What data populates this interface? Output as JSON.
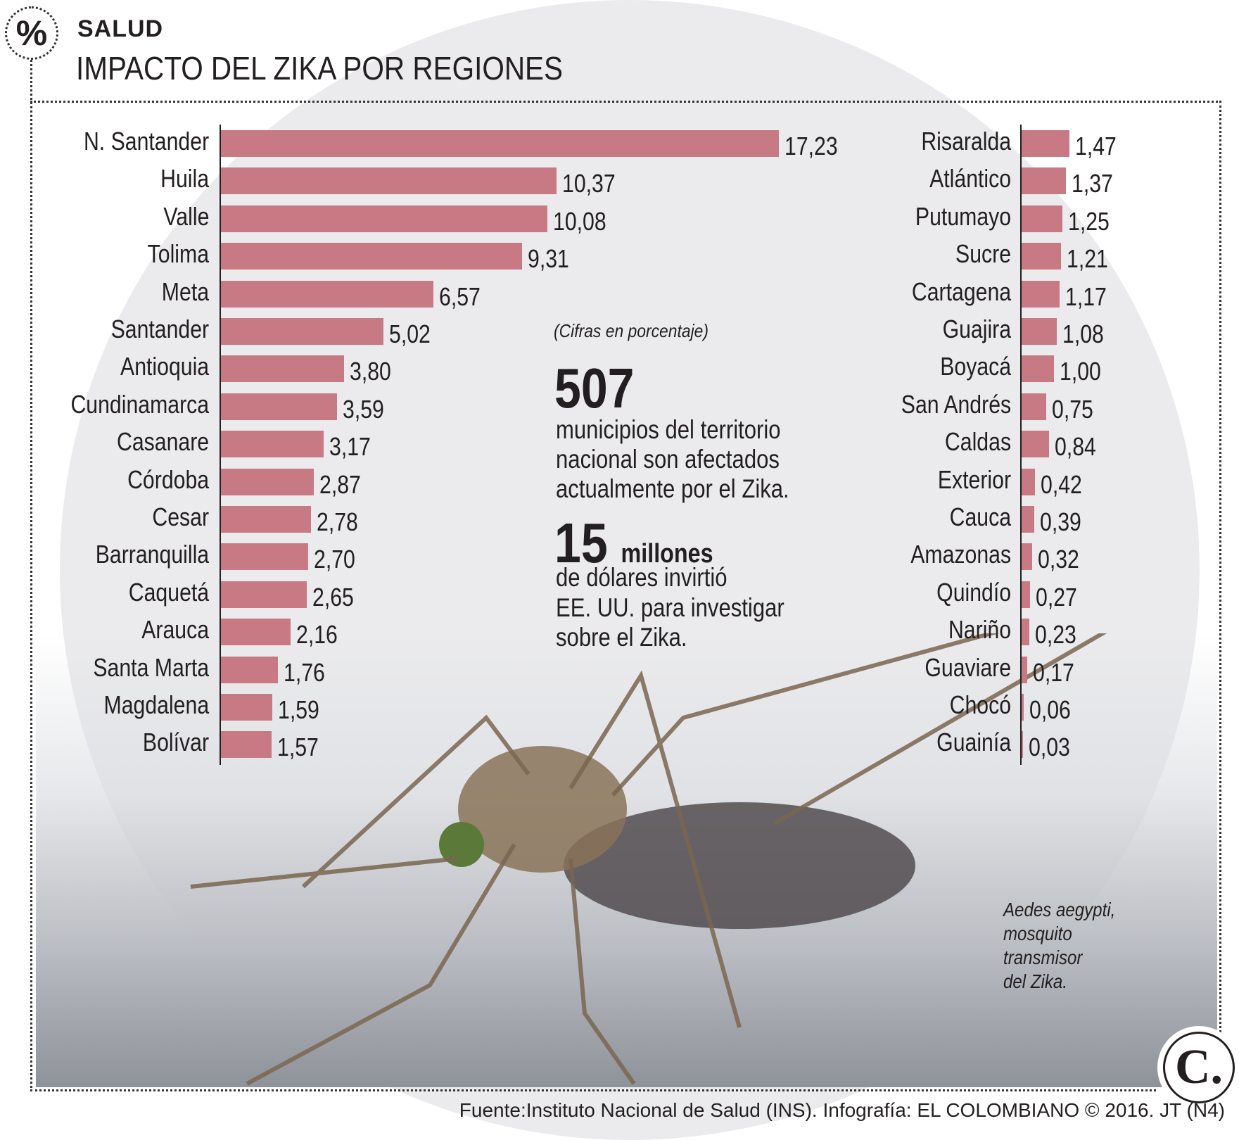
{
  "header": {
    "section": "SALUD",
    "title": "IMPACTO DEL ZIKA POR REGIONES",
    "icon": "percent-icon"
  },
  "chart_data": [
    {
      "type": "bar",
      "orientation": "horizontal",
      "bar_color": "#c87a84",
      "categories": [
        "N. Santander",
        "Huila",
        "Valle",
        "Tolima",
        "Meta",
        "Santander",
        "Antioquia",
        "Cundinamarca",
        "Casanare",
        "Córdoba",
        "Cesar",
        "Barranquilla",
        "Caquetá",
        "Arauca",
        "Santa Marta",
        "Magdalena",
        "Bolívar"
      ],
      "values": [
        17.23,
        10.37,
        10.08,
        9.31,
        6.57,
        5.02,
        3.8,
        3.59,
        3.17,
        2.87,
        2.78,
        2.7,
        2.65,
        2.16,
        1.76,
        1.59,
        1.57
      ],
      "labels": [
        "17,23",
        "10,37",
        "10,08",
        "9,31",
        "6,57",
        "5,02",
        "3,80",
        "3,59",
        "3,17",
        "2,87",
        "2,78",
        "2,70",
        "2,65",
        "2,16",
        "1,76",
        "1,59",
        "1,57"
      ]
    },
    {
      "type": "bar",
      "orientation": "horizontal",
      "bar_color": "#c87a84",
      "categories": [
        "Risaralda",
        "Atlántico",
        "Putumayo",
        "Sucre",
        "Cartagena",
        "Guajira",
        "Boyacá",
        "San Andrés",
        "Caldas",
        "Exterior",
        "Cauca",
        "Amazonas",
        "Quindío",
        "Nariño",
        "Guaviare",
        "Chocó",
        "Guainía"
      ],
      "values": [
        1.47,
        1.37,
        1.25,
        1.21,
        1.17,
        1.08,
        1.0,
        0.75,
        0.84,
        0.42,
        0.39,
        0.32,
        0.27,
        0.23,
        0.17,
        0.06,
        0.03
      ],
      "labels": [
        "1,47",
        "1,37",
        "1,25",
        "1,21",
        "1,17",
        "1,08",
        "1,00",
        "0,75",
        "0,84",
        "0,42",
        "0,39",
        "0,32",
        "0,27",
        "0,23",
        "0,17",
        "0,06",
        "0,03"
      ]
    }
  ],
  "note": "(Cifras en porcentaje)",
  "stat1": {
    "number": "507",
    "lines": [
      "municipios del territorio",
      "nacional son afectados",
      "actualmente por el Zika."
    ]
  },
  "stat2": {
    "number": "15",
    "unit": "millones",
    "lines": [
      "de dólares invirtió",
      "EE. UU. para investigar",
      "sobre el Zika."
    ]
  },
  "caption": [
    "Aedes aegypti,",
    "mosquito",
    "transmisor",
    "del Zika."
  ],
  "footer": "Fuente:Instituto Nacional de Salud (INS). Infografía: EL COLOMBIANO © 2016. JT (N4)",
  "logo": "C."
}
